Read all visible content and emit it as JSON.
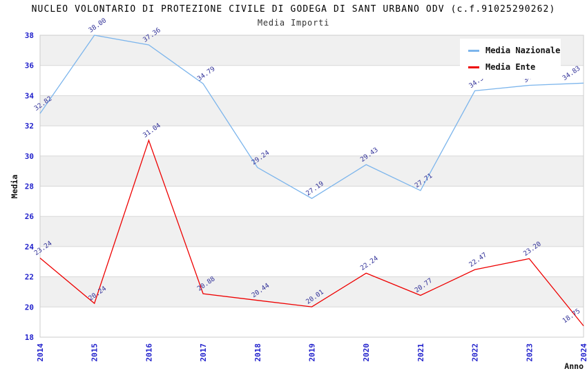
{
  "chart": {
    "title": "NUCLEO VOLONTARIO DI PROTEZIONE CIVILE DI GODEGA DI SANT URBANO ODV (c.f.91025290262)",
    "subtitle": "Media Importi"
  },
  "chart_data": {
    "type": "line",
    "categories": [
      "2014",
      "2015",
      "2016",
      "2017",
      "2018",
      "2019",
      "2020",
      "2021",
      "2022",
      "2023",
      "2024"
    ],
    "series": [
      {
        "name": "Media Nazionale",
        "color": "#7cb5ec",
        "values": [
          32.82,
          38.0,
          37.36,
          34.79,
          29.24,
          27.19,
          29.43,
          27.71,
          34.32,
          34.68,
          34.83
        ]
      },
      {
        "name": "Media Ente",
        "color": "#ee0000",
        "values": [
          23.24,
          20.24,
          31.04,
          20.88,
          20.44,
          20.01,
          22.24,
          20.77,
          22.47,
          23.2,
          18.75
        ]
      }
    ],
    "title": "Media Importi",
    "xlabel": "Anno",
    "ylabel": "Media",
    "ylim": [
      18,
      38
    ],
    "ytick_step": 2,
    "grid": true,
    "band_fill_alternating": true,
    "legend_position": "top-right",
    "data_labels_shown": true,
    "colors": {
      "tick_label": "#2222cc",
      "data_label": "#333399",
      "grid_line": "#d8d8d8",
      "band": "#f0f0f0",
      "plot_border": "#cccccc"
    }
  }
}
